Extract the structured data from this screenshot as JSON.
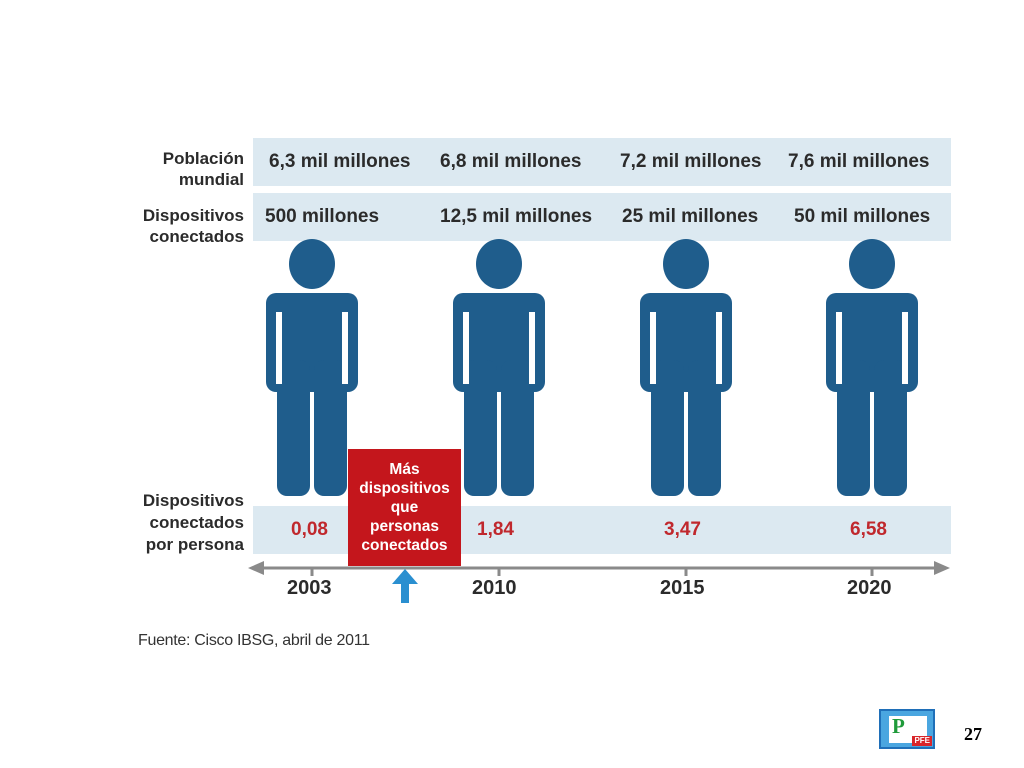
{
  "chart_data": {
    "type": "table",
    "categories": [
      "2003",
      "2010",
      "2015",
      "2020"
    ],
    "row_labels": {
      "population": "Población\nmundial",
      "devices": "Dispositivos\nconectados",
      "per_person": "Dispositivos\nconectados\npor persona"
    },
    "population_text": [
      "6,3 mil millones",
      "6,8 mil millones",
      "7,2 mil millones",
      "7,6 mil millones"
    ],
    "devices_text": [
      "500 millones",
      "12,5 mil millones",
      "25 mil millones",
      "50 mil millones"
    ],
    "per_person_text": [
      "0,08",
      "1,84",
      "3,47",
      "6,58"
    ],
    "series": [
      {
        "name": "Población mundial",
        "values": [
          6.3,
          6.8,
          7.2,
          7.6
        ],
        "unit": "mil millones"
      },
      {
        "name": "Dispositivos conectados",
        "values": [
          0.5,
          12.5,
          25,
          50
        ],
        "unit": "mil millones"
      },
      {
        "name": "Dispositivos conectados por persona",
        "values": [
          0.08,
          1.84,
          3.47,
          6.58
        ]
      }
    ],
    "callout": "Más\ndispositivos\nque\npersonas\nconectados",
    "source": "Fuente: Cisco IBSG, abril de 2011",
    "colors": {
      "band": "#dce9f1",
      "figure": "#1f5d8c",
      "ratio_text": "#c0282d",
      "callout_bg": "#c4161c",
      "arrow": "#2a8fd0",
      "axis": "#8a8a8a"
    }
  },
  "footer": {
    "page_number": "27",
    "logo_letter": "P",
    "logo_tag": "PFE"
  }
}
